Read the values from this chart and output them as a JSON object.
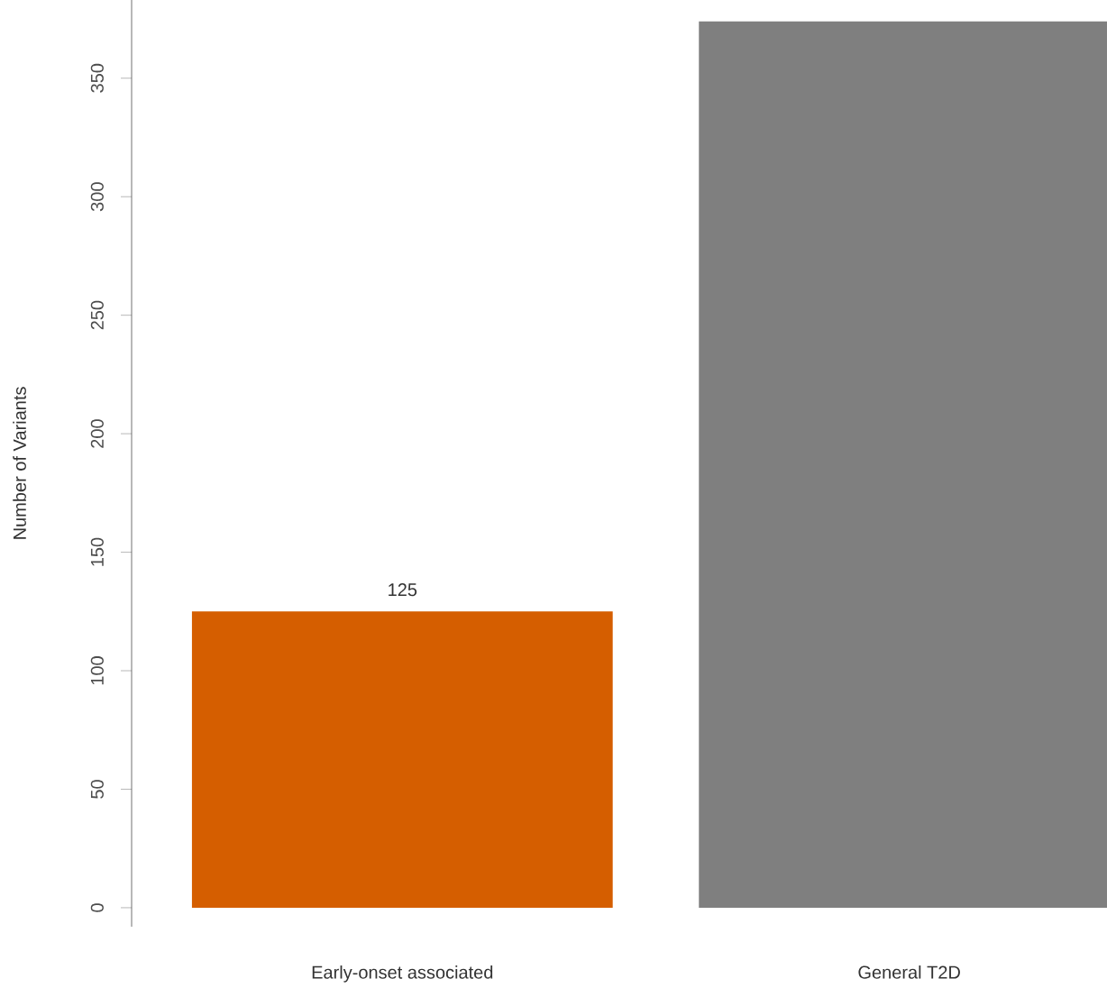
{
  "chart_data": {
    "type": "bar",
    "ylabel": "Number of Variants",
    "categories": [
      "Early-onset associated",
      "General T2D"
    ],
    "values": [
      125,
      374
    ],
    "colors": [
      "#d55e00",
      "#7f7f7f"
    ],
    "value_labels": [
      "125",
      null
    ],
    "ylim": [
      -8,
      383
    ],
    "yticks": [
      0,
      50,
      100,
      150,
      200,
      250,
      300,
      350
    ],
    "grid": false
  }
}
